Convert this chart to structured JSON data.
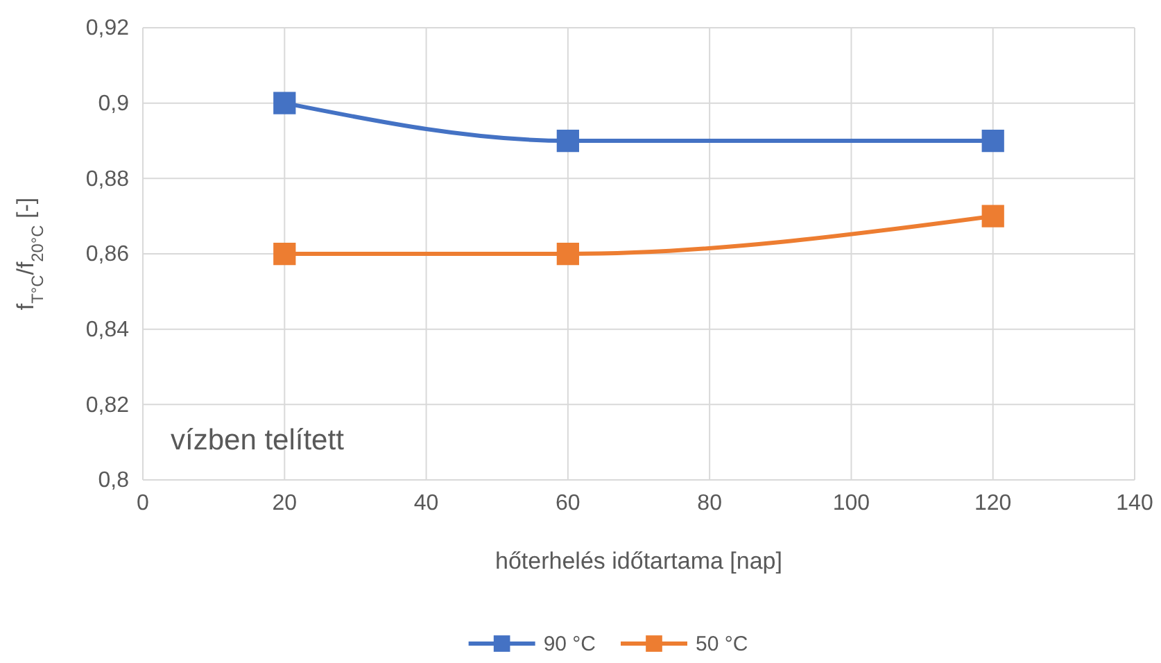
{
  "chart_data": {
    "type": "line",
    "xlabel": "hőterhelés időtartama [nap]",
    "ylabel": "f$_{T°C}$/f$_{20°C}$ [-]",
    "x": [
      20,
      60,
      120
    ],
    "series": [
      {
        "name": "90 °C",
        "color": "#4472c4",
        "values": [
          0.9,
          0.89,
          0.89
        ]
      },
      {
        "name": "50 °C",
        "color": "#ed7d31",
        "values": [
          0.86,
          0.86,
          0.87
        ]
      }
    ],
    "xlim": [
      0,
      140
    ],
    "xticks": [
      0,
      20,
      40,
      60,
      80,
      100,
      120,
      140
    ],
    "ylim": [
      0.8,
      0.92
    ],
    "yticks": [
      {
        "value": 0.8,
        "label": "0,8"
      },
      {
        "value": 0.82,
        "label": "0,82"
      },
      {
        "value": 0.84,
        "label": "0,84"
      },
      {
        "value": 0.86,
        "label": "0,86"
      },
      {
        "value": 0.88,
        "label": "0,88"
      },
      {
        "value": 0.9,
        "label": "0,9"
      },
      {
        "value": 0.92,
        "label": "0,92"
      }
    ],
    "grid": true,
    "legend": "bottom",
    "marker": "square",
    "line_style": "solid",
    "annotations": [
      "vízben telített"
    ]
  }
}
